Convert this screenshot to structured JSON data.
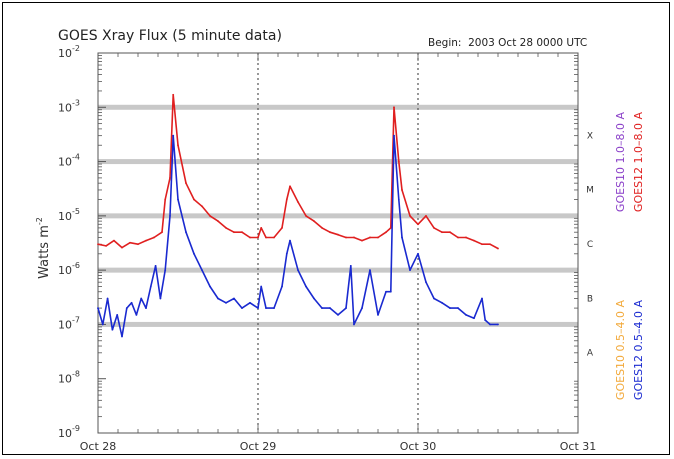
{
  "chart_data": {
    "type": "line",
    "title": "GOES Xray Flux (5 minute data)",
    "begin_label": "Begin:  2003 Oct 28 0000 UTC",
    "ylabel": "Watts m",
    "ylabel_sup": "-2",
    "y_scale": "log",
    "ylim": [
      1e-09,
      0.01
    ],
    "y_ticks": [
      {
        "base": "10",
        "exp": "-2"
      },
      {
        "base": "10",
        "exp": "-3"
      },
      {
        "base": "10",
        "exp": "-4"
      },
      {
        "base": "10",
        "exp": "-5"
      },
      {
        "base": "10",
        "exp": "-6"
      },
      {
        "base": "10",
        "exp": "-7"
      },
      {
        "base": "10",
        "exp": "-8"
      },
      {
        "base": "10",
        "exp": "-9"
      }
    ],
    "x_ticks": [
      "Oct 28",
      "Oct 29",
      "Oct 30",
      "Oct 31"
    ],
    "xlim_days": [
      0,
      3
    ],
    "flare_classes": [
      "X",
      "M",
      "C",
      "B",
      "A"
    ],
    "legend": {
      "goes10_long": "GOES10 1.0–8.0 A",
      "goes12_long": "GOES12 1.0–8.0 A",
      "goes10_short": "GOES10 0.5–4.0 A",
      "goes12_short": "GOES12 0.5–4.0 A"
    },
    "colors": {
      "long_channel": "#e02020",
      "short_channel": "#1a2ad0",
      "goes10_long_label": "#8a3fc8",
      "goes12_long_label": "#e02020",
      "goes10_short_label": "#f2a93a",
      "goes12_short_label": "#1a2ad0",
      "band": "#c8c8c8"
    },
    "series": [
      {
        "name": "GOES12 1.0–8.0 A",
        "x_day": [
          0,
          0.05,
          0.1,
          0.15,
          0.2,
          0.25,
          0.3,
          0.35,
          0.4,
          0.42,
          0.45,
          0.47,
          0.5,
          0.55,
          0.6,
          0.65,
          0.7,
          0.75,
          0.8,
          0.85,
          0.9,
          0.95,
          1.0,
          1.02,
          1.05,
          1.1,
          1.15,
          1.18,
          1.2,
          1.25,
          1.3,
          1.35,
          1.4,
          1.45,
          1.5,
          1.55,
          1.6,
          1.65,
          1.7,
          1.75,
          1.8,
          1.83,
          1.85,
          1.88,
          1.9,
          1.95,
          2.0,
          2.05,
          2.1,
          2.15,
          2.2,
          2.25,
          2.3,
          2.35,
          2.4,
          2.45,
          2.5
        ],
        "y": [
          3e-06,
          2.8e-06,
          3.5e-06,
          2.6e-06,
          3.2e-06,
          3e-06,
          3.5e-06,
          4e-06,
          5e-06,
          2e-05,
          5e-05,
          0.0017,
          0.0002,
          4e-05,
          2e-05,
          1.5e-05,
          1e-05,
          8e-06,
          6e-06,
          5e-06,
          5e-06,
          4e-06,
          4e-06,
          6e-06,
          4e-06,
          4e-06,
          6e-06,
          2e-05,
          3.5e-05,
          1.8e-05,
          1e-05,
          8e-06,
          6e-06,
          5e-06,
          4.5e-06,
          4e-06,
          4e-06,
          3.5e-06,
          4e-06,
          4e-06,
          5e-06,
          6e-06,
          0.001,
          0.0001,
          3e-05,
          1e-05,
          7e-06,
          1e-05,
          6e-06,
          5e-06,
          5e-06,
          4e-06,
          4e-06,
          3.5e-06,
          3e-06,
          3e-06,
          2.5e-06
        ]
      },
      {
        "name": "GOES12 0.5–4.0 A",
        "x_day": [
          0,
          0.03,
          0.06,
          0.09,
          0.12,
          0.15,
          0.18,
          0.21,
          0.24,
          0.27,
          0.3,
          0.33,
          0.36,
          0.39,
          0.42,
          0.45,
          0.47,
          0.5,
          0.55,
          0.6,
          0.65,
          0.7,
          0.75,
          0.8,
          0.85,
          0.9,
          0.95,
          1.0,
          1.02,
          1.05,
          1.1,
          1.15,
          1.18,
          1.2,
          1.25,
          1.3,
          1.35,
          1.4,
          1.45,
          1.5,
          1.55,
          1.58,
          1.6,
          1.65,
          1.7,
          1.75,
          1.8,
          1.83,
          1.85,
          1.88,
          1.9,
          1.95,
          2.0,
          2.05,
          2.1,
          2.15,
          2.2,
          2.25,
          2.3,
          2.35,
          2.4,
          2.42,
          2.45,
          2.5
        ],
        "y": [
          2e-07,
          1e-07,
          3e-07,
          8e-08,
          1.5e-07,
          6e-08,
          2e-07,
          2.5e-07,
          1.5e-07,
          3e-07,
          2e-07,
          5e-07,
          1.2e-06,
          3e-07,
          1e-06,
          1e-05,
          0.0003,
          2e-05,
          5e-06,
          2e-06,
          1e-06,
          5e-07,
          3e-07,
          2.5e-07,
          3e-07,
          2e-07,
          2.5e-07,
          2e-07,
          5e-07,
          2e-07,
          2e-07,
          5e-07,
          2e-06,
          3.5e-06,
          1e-06,
          5e-07,
          3e-07,
          2e-07,
          2e-07,
          1.5e-07,
          2e-07,
          1.2e-06,
          1e-07,
          2e-07,
          1e-06,
          1.5e-07,
          4e-07,
          4e-07,
          0.0003,
          2e-05,
          4e-06,
          1e-06,
          2e-06,
          6e-07,
          3e-07,
          2.5e-07,
          2e-07,
          2e-07,
          1.5e-07,
          1.3e-07,
          3e-07,
          1.2e-07,
          1e-07,
          1e-07
        ]
      }
    ]
  }
}
